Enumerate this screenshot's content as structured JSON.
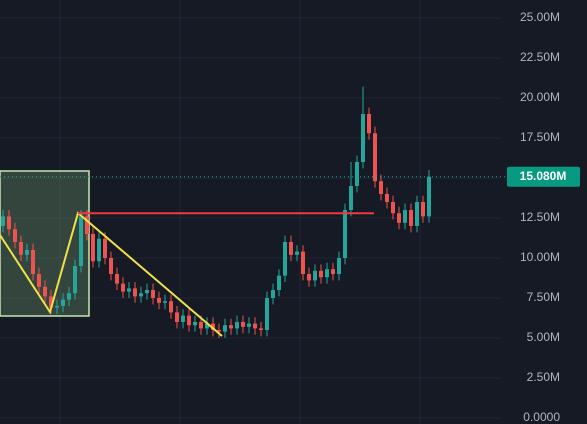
{
  "chart_data": {
    "type": "candlestick",
    "series": [
      {
        "up_color": "#26a69a",
        "down_color": "#ef5350",
        "open": [
          12.0,
          12.6,
          11.8,
          11.0,
          10.2,
          10.5,
          9.0,
          8.2,
          7.6,
          6.9,
          7.0,
          7.4,
          7.8,
          9.5,
          12.6,
          11.5,
          9.8,
          11.2,
          10.0,
          9.0,
          8.4,
          7.9,
          8.1,
          7.6,
          7.8,
          8.0,
          7.5,
          7.2,
          7.3,
          6.6,
          6.0,
          6.4,
          5.8,
          6.0,
          5.6,
          5.9,
          5.5,
          5.4,
          5.8,
          5.6,
          6.0,
          5.7,
          5.9,
          5.6,
          5.5,
          7.5,
          8.0,
          8.9,
          11.0,
          10.2,
          10.4,
          9.0,
          8.6,
          9.2,
          8.8,
          9.3,
          9.0,
          10.0,
          13.0,
          14.5,
          16.0,
          19.0,
          17.8,
          14.8,
          14.0,
          13.5,
          12.8,
          12.2,
          13.0,
          12.0,
          13.5,
          12.6
        ],
        "high": [
          13.0,
          13.0,
          12.2,
          11.4,
          10.9,
          10.9,
          9.4,
          8.6,
          8.0,
          7.4,
          7.8,
          8.2,
          9.9,
          13.0,
          13.0,
          11.9,
          11.6,
          11.6,
          10.4,
          9.4,
          8.8,
          8.5,
          8.5,
          8.2,
          8.4,
          8.4,
          7.9,
          7.7,
          7.7,
          7.0,
          6.8,
          6.8,
          6.4,
          6.4,
          6.3,
          6.3,
          5.9,
          6.2,
          6.2,
          6.4,
          6.4,
          6.3,
          6.3,
          6.0,
          7.9,
          8.4,
          9.3,
          11.4,
          11.4,
          10.8,
          10.8,
          9.4,
          9.6,
          9.6,
          9.7,
          9.7,
          10.4,
          13.4,
          16.0,
          16.4,
          20.7,
          19.4,
          18.2,
          15.2,
          14.4,
          13.9,
          13.2,
          13.4,
          13.4,
          13.9,
          13.9,
          15.5
        ],
        "low": [
          11.6,
          11.4,
          10.6,
          9.8,
          9.8,
          8.6,
          7.8,
          7.2,
          6.5,
          6.5,
          6.6,
          7.0,
          7.4,
          9.1,
          11.1,
          9.4,
          9.4,
          9.6,
          8.6,
          8.0,
          7.5,
          7.5,
          7.2,
          7.2,
          7.4,
          7.1,
          6.8,
          6.8,
          6.2,
          5.6,
          5.6,
          5.4,
          5.4,
          5.2,
          5.2,
          5.1,
          5.0,
          5.0,
          5.2,
          5.2,
          5.3,
          5.3,
          5.2,
          5.1,
          5.1,
          7.1,
          7.6,
          8.5,
          9.8,
          9.8,
          8.6,
          8.2,
          8.2,
          8.4,
          8.4,
          8.6,
          8.6,
          9.6,
          12.6,
          14.1,
          15.6,
          17.4,
          14.4,
          13.6,
          13.1,
          12.4,
          11.8,
          11.8,
          11.6,
          11.6,
          12.2,
          12.2
        ],
        "close": [
          12.6,
          11.8,
          11.0,
          10.2,
          10.5,
          9.0,
          8.2,
          7.6,
          6.9,
          7.0,
          7.4,
          7.8,
          9.5,
          12.6,
          11.5,
          9.8,
          11.2,
          10.0,
          9.0,
          8.4,
          7.9,
          8.1,
          7.6,
          7.8,
          8.0,
          7.5,
          7.2,
          7.3,
          6.6,
          6.0,
          6.4,
          5.8,
          6.0,
          5.6,
          5.9,
          5.5,
          5.4,
          5.8,
          5.6,
          6.0,
          5.7,
          5.9,
          5.6,
          5.5,
          7.5,
          8.0,
          8.9,
          11.0,
          10.2,
          10.4,
          9.0,
          8.6,
          9.2,
          8.8,
          9.3,
          9.0,
          10.0,
          13.0,
          14.5,
          16.0,
          19.0,
          17.8,
          14.8,
          14.0,
          13.5,
          12.8,
          12.2,
          13.0,
          12.0,
          13.5,
          12.6,
          15.08
        ]
      }
    ],
    "last_price": {
      "value": 15.08,
      "label": "15.080M"
    },
    "level_line": 12.8,
    "ylim": [
      -0.375,
      26.125
    ],
    "yticks": [
      {
        "value": 0,
        "label": "0.0000"
      },
      {
        "value": 2.5,
        "label": "2.50M"
      },
      {
        "value": 5,
        "label": "5.00M"
      },
      {
        "value": 7.5,
        "label": "7.50M"
      },
      {
        "value": 10,
        "label": "10.00M"
      },
      {
        "value": 12.5,
        "label": "12.50M"
      },
      {
        "value": 15,
        "label": "15.00M"
      },
      {
        "value": 17.5,
        "label": "17.50M"
      },
      {
        "value": 20,
        "label": "20.00M"
      },
      {
        "value": 22.5,
        "label": "22.50M"
      },
      {
        "value": 25,
        "label": "25.00M"
      }
    ],
    "grid": true
  }
}
